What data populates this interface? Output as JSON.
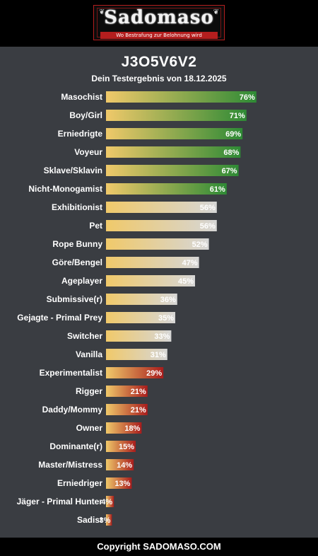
{
  "header": {
    "logo_title": "Sadomaso",
    "logo_subtitle": "Wo Bestrafung zur Belohnung wird"
  },
  "result": {
    "title": "J3O5V6V2",
    "subtitle": "Dein Testergebnis von 18.12.2025"
  },
  "footer": {
    "copyright": "Copyright SADOMASO.COM"
  },
  "colors": {
    "bar_start": "#f0c96a",
    "high_end": "#2e8a35",
    "mid_end": "#d6d6d6",
    "low_end": "#a81c1c"
  },
  "chart_data": {
    "type": "bar",
    "orientation": "horizontal",
    "title": "J3O5V6V2",
    "subtitle": "Dein Testergebnis von 18.12.2025",
    "xlim": [
      0,
      100
    ],
    "grid": false,
    "legend": "none",
    "categories": [
      "Masochist",
      "Boy/Girl",
      "Erniedrigte",
      "Voyeur",
      "Sklave/Sklavin",
      "Nicht-Monogamist",
      "Exhibitionist",
      "Pet",
      "Rope Bunny",
      "Göre/Bengel",
      "Ageplayer",
      "Submissive(r)",
      "Gejagte - Primal Prey",
      "Switcher",
      "Vanilla",
      "Experimentalist",
      "Rigger",
      "Daddy/Mommy",
      "Owner",
      "Dominante(r)",
      "Master/Mistress",
      "Erniedriger",
      "Jäger - Primal Hunter",
      "Sadist"
    ],
    "values": [
      76,
      71,
      69,
      68,
      67,
      61,
      56,
      56,
      52,
      47,
      45,
      36,
      35,
      33,
      31,
      29,
      21,
      21,
      18,
      15,
      14,
      13,
      4,
      3
    ],
    "labels": [
      "76%",
      "71%",
      "69%",
      "68%",
      "67%",
      "61%",
      "56%",
      "56%",
      "52%",
      "47%",
      "45%",
      "36%",
      "35%",
      "33%",
      "31%",
      "29%",
      "21%",
      "21%",
      "18%",
      "15%",
      "14%",
      "13%",
      "4%",
      "3%"
    ],
    "tiers": [
      "high",
      "high",
      "high",
      "high",
      "high",
      "high",
      "mid",
      "mid",
      "mid",
      "mid",
      "mid",
      "mid",
      "mid",
      "mid",
      "mid",
      "low",
      "low",
      "low",
      "low",
      "low",
      "low",
      "low",
      "low",
      "low"
    ]
  }
}
